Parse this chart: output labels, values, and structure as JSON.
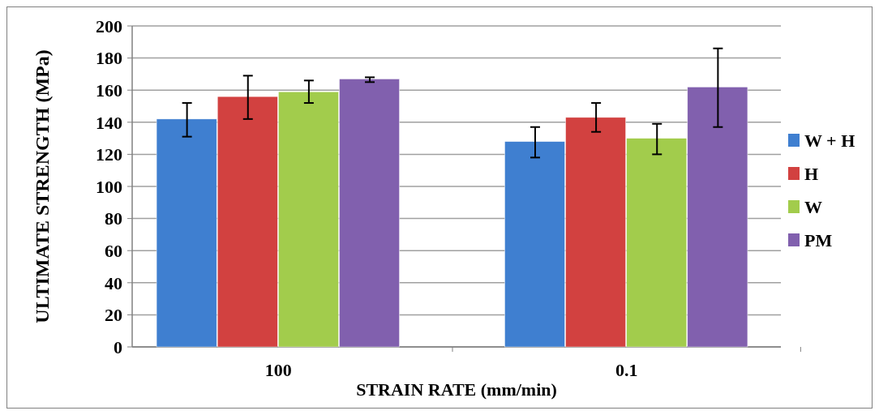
{
  "chart_data": {
    "type": "bar",
    "xlabel": "STRAIN RATE (mm/min)",
    "ylabel": "ULTIMATE STRENGTH (MPa)",
    "categories": [
      "100",
      "0.1"
    ],
    "series": [
      {
        "name": "W + H",
        "color": "#3f7fd0",
        "values": [
          142,
          128
        ],
        "errors": [
          [
            131,
            152
          ],
          [
            118,
            137
          ]
        ]
      },
      {
        "name": "H",
        "color": "#d24140",
        "values": [
          156,
          143
        ],
        "errors": [
          [
            142,
            169
          ],
          [
            134,
            152
          ]
        ]
      },
      {
        "name": "W",
        "color": "#a2cc4c",
        "values": [
          159,
          130
        ],
        "errors": [
          [
            152,
            166
          ],
          [
            120,
            139
          ]
        ]
      },
      {
        "name": "PM",
        "color": "#8160ae",
        "values": [
          167,
          162
        ],
        "errors": [
          [
            165,
            168
          ],
          [
            137,
            186
          ]
        ]
      }
    ],
    "ylim": [
      0,
      200
    ],
    "yticks": [
      0,
      20,
      40,
      60,
      80,
      100,
      120,
      140,
      160,
      180,
      200
    ],
    "grid": "y",
    "legend": "right"
  }
}
